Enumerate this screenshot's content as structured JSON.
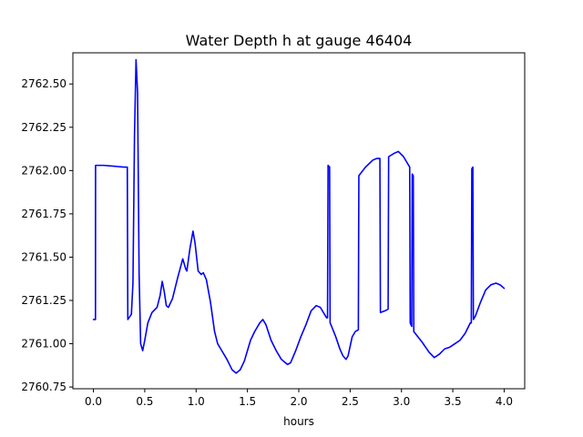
{
  "chart_data": {
    "type": "line",
    "title": "Water Depth h at gauge 46404",
    "xlabel": "hours",
    "ylabel": "",
    "xlim": [
      -0.2,
      4.2
    ],
    "ylim": [
      2760.74,
      2762.68
    ],
    "xticks": [
      "0.0",
      "0.5",
      "1.0",
      "1.5",
      "2.0",
      "2.5",
      "3.0",
      "3.5",
      "4.0"
    ],
    "yticks": [
      "2760.75",
      "2761.00",
      "2761.25",
      "2761.50",
      "2761.75",
      "2762.00",
      "2762.25",
      "2762.50"
    ],
    "grid": false,
    "series": [
      {
        "color": "#0000ff",
        "points": [
          [
            0.0,
            2761.14
          ],
          [
            0.02,
            2761.14
          ],
          [
            0.021,
            2762.03
          ],
          [
            0.1,
            2762.03
          ],
          [
            0.2,
            2762.025
          ],
          [
            0.3,
            2762.02
          ],
          [
            0.33,
            2762.02
          ],
          [
            0.335,
            2761.14
          ],
          [
            0.37,
            2761.17
          ],
          [
            0.385,
            2761.35
          ],
          [
            0.4,
            2762.2
          ],
          [
            0.415,
            2762.64
          ],
          [
            0.43,
            2762.45
          ],
          [
            0.445,
            2761.4
          ],
          [
            0.46,
            2761.0
          ],
          [
            0.48,
            2760.96
          ],
          [
            0.5,
            2761.02
          ],
          [
            0.53,
            2761.12
          ],
          [
            0.57,
            2761.18
          ],
          [
            0.62,
            2761.21
          ],
          [
            0.65,
            2761.28
          ],
          [
            0.67,
            2761.36
          ],
          [
            0.69,
            2761.3
          ],
          [
            0.71,
            2761.22
          ],
          [
            0.73,
            2761.21
          ],
          [
            0.77,
            2761.26
          ],
          [
            0.82,
            2761.38
          ],
          [
            0.87,
            2761.49
          ],
          [
            0.9,
            2761.43
          ],
          [
            0.91,
            2761.42
          ],
          [
            0.94,
            2761.55
          ],
          [
            0.97,
            2761.65
          ],
          [
            0.99,
            2761.58
          ],
          [
            1.02,
            2761.42
          ],
          [
            1.05,
            2761.4
          ],
          [
            1.07,
            2761.41
          ],
          [
            1.1,
            2761.37
          ],
          [
            1.14,
            2761.24
          ],
          [
            1.18,
            2761.07
          ],
          [
            1.21,
            2761.0
          ],
          [
            1.25,
            2760.96
          ],
          [
            1.3,
            2760.91
          ],
          [
            1.35,
            2760.85
          ],
          [
            1.39,
            2760.83
          ],
          [
            1.43,
            2760.85
          ],
          [
            1.47,
            2760.9
          ],
          [
            1.5,
            2760.96
          ],
          [
            1.53,
            2761.02
          ],
          [
            1.57,
            2761.07
          ],
          [
            1.62,
            2761.12
          ],
          [
            1.65,
            2761.14
          ],
          [
            1.68,
            2761.11
          ],
          [
            1.73,
            2761.02
          ],
          [
            1.78,
            2760.96
          ],
          [
            1.83,
            2760.91
          ],
          [
            1.89,
            2760.88
          ],
          [
            1.92,
            2760.89
          ],
          [
            1.97,
            2760.96
          ],
          [
            2.02,
            2761.04
          ],
          [
            2.07,
            2761.11
          ],
          [
            2.12,
            2761.19
          ],
          [
            2.17,
            2761.22
          ],
          [
            2.21,
            2761.21
          ],
          [
            2.25,
            2761.17
          ],
          [
            2.27,
            2761.15
          ],
          [
            2.28,
            2761.15
          ],
          [
            2.285,
            2762.03
          ],
          [
            2.3,
            2762.02
          ],
          [
            2.305,
            2761.12
          ],
          [
            2.32,
            2761.1
          ],
          [
            2.36,
            2761.04
          ],
          [
            2.4,
            2760.97
          ],
          [
            2.43,
            2760.93
          ],
          [
            2.46,
            2760.91
          ],
          [
            2.48,
            2760.93
          ],
          [
            2.52,
            2761.04
          ],
          [
            2.55,
            2761.07
          ],
          [
            2.58,
            2761.08
          ],
          [
            2.585,
            2761.97
          ],
          [
            2.65,
            2762.02
          ],
          [
            2.72,
            2762.06
          ],
          [
            2.76,
            2762.07
          ],
          [
            2.79,
            2762.07
          ],
          [
            2.795,
            2761.18
          ],
          [
            2.84,
            2761.19
          ],
          [
            2.87,
            2761.2
          ],
          [
            2.875,
            2762.08
          ],
          [
            2.93,
            2762.1
          ],
          [
            2.97,
            2762.11
          ],
          [
            3.02,
            2762.08
          ],
          [
            3.07,
            2762.03
          ],
          [
            3.08,
            2762.02
          ],
          [
            3.085,
            2761.12
          ],
          [
            3.1,
            2761.1
          ],
          [
            3.105,
            2761.98
          ],
          [
            3.115,
            2761.97
          ],
          [
            3.12,
            2761.07
          ],
          [
            3.2,
            2761.01
          ],
          [
            3.27,
            2760.95
          ],
          [
            3.32,
            2760.92
          ],
          [
            3.37,
            2760.94
          ],
          [
            3.42,
            2760.97
          ],
          [
            3.47,
            2760.98
          ],
          [
            3.52,
            2761.0
          ],
          [
            3.57,
            2761.02
          ],
          [
            3.62,
            2761.06
          ],
          [
            3.67,
            2761.12
          ],
          [
            3.68,
            2761.12
          ],
          [
            3.685,
            2762.01
          ],
          [
            3.695,
            2762.02
          ],
          [
            3.7,
            2761.14
          ],
          [
            3.72,
            2761.16
          ],
          [
            3.77,
            2761.24
          ],
          [
            3.82,
            2761.31
          ],
          [
            3.87,
            2761.34
          ],
          [
            3.92,
            2761.35
          ],
          [
            3.96,
            2761.34
          ],
          [
            4.0,
            2761.32
          ]
        ]
      }
    ]
  }
}
